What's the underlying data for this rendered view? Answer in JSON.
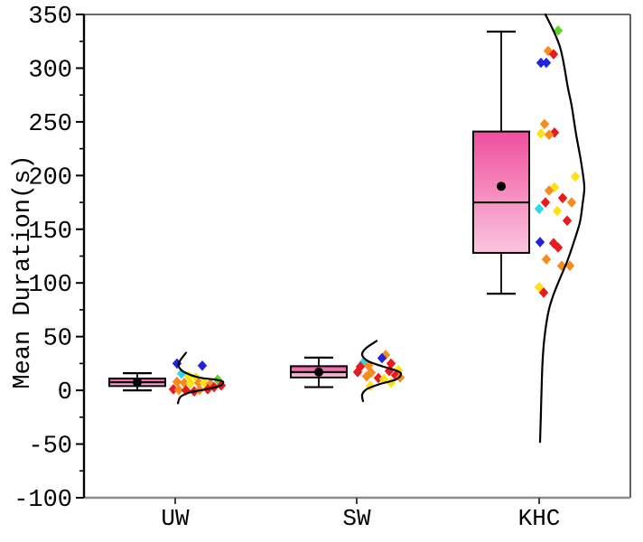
{
  "chart_data": {
    "type": "box",
    "variant": "boxplot-with-jitter-points-and-half-violin",
    "title": "",
    "xlabel": "",
    "ylabel": "Mean Duration(s)",
    "categories": [
      "UW",
      "SW",
      "KHC"
    ],
    "ylim": [
      -100,
      350
    ],
    "yticks_major": [
      350,
      300,
      250,
      200,
      150,
      100,
      50,
      0,
      -50,
      -100
    ],
    "yticks_minor": [
      325,
      275,
      225,
      175,
      125,
      75,
      25,
      -25,
      -75
    ],
    "grid": "off",
    "legend": "none",
    "point_format": "[value, jitter_offset_px, color_key]",
    "density_format": "[offset_px, value]",
    "colors": {
      "box_gradient_top": "#EF4F9D",
      "box_gradient_bottom": "#FBC6E0",
      "box_border": "#000000",
      "median_line": "#000000",
      "whisker": "#000000",
      "mean_dot": "#000000",
      "density_curve": "#000000",
      "axis_left": "#000000",
      "axis_frame": "#3a3a3a",
      "axis_bottom": "#8A8A8A",
      "palette": {
        "blue": "#2323DC",
        "cyan": "#30D5E8",
        "green": "#5CD629",
        "yellow": "#FFE214",
        "orange": "#F68B1F",
        "red": "#E8191F"
      }
    },
    "groups": [
      {
        "label": "UW",
        "box": {
          "whisker_low": 0,
          "q1": 4,
          "median": 7.5,
          "q3": 11,
          "whisker_high": 16,
          "mean": 7.5
        },
        "points": [
          [
            25,
            2,
            "blue"
          ],
          [
            23,
            30,
            "blue"
          ],
          [
            15.5,
            7,
            "cyan"
          ],
          [
            13,
            15,
            "yellow"
          ],
          [
            12,
            23,
            "yellow"
          ],
          [
            10,
            47,
            "green"
          ],
          [
            8,
            2,
            "orange"
          ],
          [
            7,
            10,
            "orange"
          ],
          [
            6.5,
            17,
            "yellow"
          ],
          [
            7,
            26,
            "orange"
          ],
          [
            7,
            32,
            "yellow"
          ],
          [
            6,
            39,
            "orange"
          ],
          [
            4.5,
            51,
            "red"
          ],
          [
            3,
            43,
            "red"
          ],
          [
            1,
            -2,
            "red"
          ],
          [
            0.5,
            4,
            "orange"
          ],
          [
            0,
            12,
            "red"
          ],
          [
            -1,
            21,
            "red"
          ],
          [
            0.5,
            27,
            "orange"
          ],
          [
            1,
            36,
            "red"
          ]
        ],
        "density": [
          [
            12,
            35
          ],
          [
            5,
            27
          ],
          [
            4,
            22
          ],
          [
            10,
            17
          ],
          [
            26,
            12
          ],
          [
            44,
            10
          ],
          [
            53,
            8
          ],
          [
            49,
            4
          ],
          [
            34,
            1
          ],
          [
            16,
            -2
          ],
          [
            6,
            -6
          ],
          [
            3,
            -12
          ]
        ]
      },
      {
        "label": "SW",
        "box": {
          "whisker_low": 3,
          "q1": 12,
          "median": 17,
          "q3": 22.5,
          "whisker_high": 30.5,
          "mean": 17
        },
        "points": [
          [
            33,
            32,
            "orange"
          ],
          [
            30,
            28,
            "blue"
          ],
          [
            26.5,
            8,
            "cyan"
          ],
          [
            25,
            38,
            "red"
          ],
          [
            23,
            13,
            "orange"
          ],
          [
            22,
            4,
            "red"
          ],
          [
            19,
            46,
            "yellow"
          ],
          [
            18,
            36,
            "red"
          ],
          [
            17,
            1,
            "red"
          ],
          [
            16.5,
            16,
            "orange"
          ],
          [
            14,
            43,
            "red"
          ],
          [
            13,
            11,
            "orange"
          ],
          [
            12,
            48,
            "orange"
          ],
          [
            11.5,
            24,
            "red"
          ],
          [
            10.5,
            30,
            "yellow"
          ],
          [
            7,
            38,
            "yellow"
          ],
          [
            4,
            15,
            "yellow"
          ]
        ],
        "density": [
          [
            22,
            46
          ],
          [
            10,
            39
          ],
          [
            6,
            33
          ],
          [
            13,
            27
          ],
          [
            30,
            22
          ],
          [
            45,
            18
          ],
          [
            49,
            15
          ],
          [
            43,
            10
          ],
          [
            26,
            6
          ],
          [
            11,
            1
          ],
          [
            6,
            -4
          ],
          [
            7,
            -10
          ]
        ]
      },
      {
        "label": "KHC",
        "box": {
          "whisker_low": 90,
          "q1": 128,
          "median": 175,
          "q3": 241,
          "whisker_high": 334,
          "mean": 190
        },
        "points": [
          [
            335,
            21,
            "green"
          ],
          [
            316,
            10,
            "orange"
          ],
          [
            313,
            16,
            "red"
          ],
          [
            305,
            2,
            "blue"
          ],
          [
            305,
            8,
            "blue"
          ],
          [
            248,
            6,
            "orange"
          ],
          [
            240,
            17,
            "red"
          ],
          [
            239,
            2,
            "yellow"
          ],
          [
            238,
            11,
            "orange"
          ],
          [
            199,
            40,
            "yellow"
          ],
          [
            189,
            17,
            "yellow"
          ],
          [
            186,
            11,
            "orange"
          ],
          [
            179,
            26,
            "red"
          ],
          [
            175,
            7,
            "red"
          ],
          [
            175,
            36,
            "orange"
          ],
          [
            169,
            0,
            "cyan"
          ],
          [
            167,
            20,
            "yellow"
          ],
          [
            158,
            31,
            "red"
          ],
          [
            138,
            1,
            "blue"
          ],
          [
            137,
            16,
            "red"
          ],
          [
            133,
            21,
            "red"
          ],
          [
            122,
            8,
            "orange"
          ],
          [
            116,
            25,
            "orange"
          ],
          [
            116,
            34,
            "orange"
          ],
          [
            96,
            0,
            "yellow"
          ],
          [
            91,
            5,
            "red"
          ]
        ],
        "density": [
          [
            7,
            350
          ],
          [
            23,
            320
          ],
          [
            32,
            281
          ],
          [
            36,
            265
          ],
          [
            41,
            238
          ],
          [
            46,
            215
          ],
          [
            49,
            198
          ],
          [
            50,
            187
          ],
          [
            48,
            173
          ],
          [
            45,
            156
          ],
          [
            38,
            137
          ],
          [
            31,
            120
          ],
          [
            23,
            104
          ],
          [
            15,
            87
          ],
          [
            10,
            72
          ],
          [
            6,
            50
          ],
          [
            4,
            30
          ],
          [
            3,
            10
          ],
          [
            2,
            -20
          ],
          [
            1,
            -48
          ]
        ]
      }
    ]
  }
}
